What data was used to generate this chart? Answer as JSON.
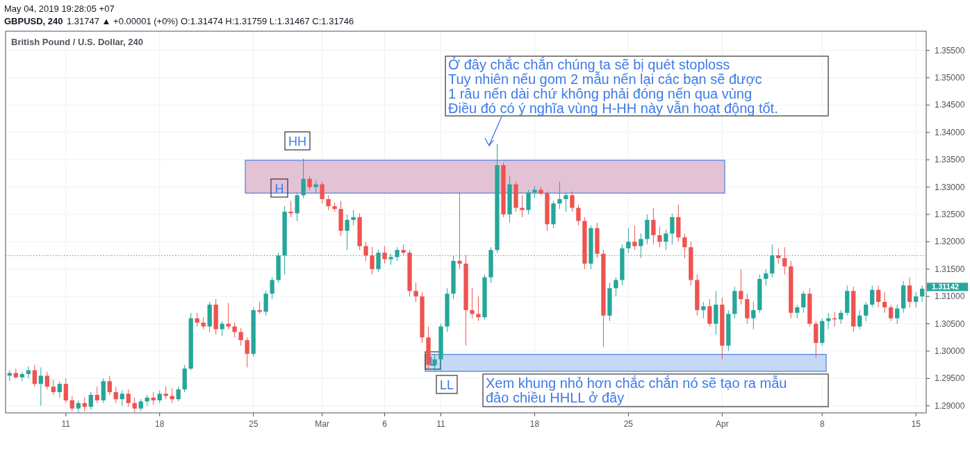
{
  "chart_data": {
    "type": "candlestick",
    "title": "GBPUSD, 240",
    "subtitle": "1.31747 ▲ +0.00001 (+0%) O:1.31474 H:1.31759 L:1.31467 C:1.31746",
    "annotations": [
      "May 04, 2019 19:28:05 +07",
      "British Pound / U.S. Dollar, 240",
      "Ở đây chắc chắn chúng ta sẽ bị quét stoploss\nTuy nhiên nếu gom 2 mẫu nến lại các bạn sẽ được\n1 râu nến dài chứ không phải đóng nến qua vùng\nĐiều đó có ý nghĩa vùng H-HH này vẫn hoạt động tốt.",
      "HH",
      "H",
      "L",
      "LL",
      "Xem khung nhỏ hơn chắc chắn nó sẽ tạo ra mẫu\nđảo chiều HHLL ở đây",
      "1.31142"
    ],
    "categories": [
      null,
      null,
      null,
      null,
      null,
      null,
      null,
      null,
      null,
      "11",
      null,
      null,
      null,
      null,
      null,
      null,
      null,
      null,
      null,
      null,
      null,
      null,
      null,
      null,
      "18",
      null,
      null,
      null,
      null,
      null,
      null,
      null,
      null,
      null,
      null,
      null,
      null,
      null,
      null,
      "25",
      null,
      null,
      null,
      null,
      null,
      null,
      null,
      null,
      null,
      null,
      "Mar",
      null,
      null,
      null,
      null,
      null,
      null,
      null,
      null,
      null,
      "6",
      null,
      null,
      null,
      null,
      null,
      null,
      null,
      null,
      "11",
      null,
      null,
      null,
      null,
      null,
      null,
      null,
      null,
      null,
      null,
      null,
      null,
      null,
      null,
      "18",
      null,
      null,
      null,
      null,
      null,
      null,
      null,
      null,
      null,
      null,
      null,
      null,
      null,
      null,
      "25",
      null,
      null,
      null,
      null,
      null,
      null,
      null,
      null,
      null,
      null,
      null,
      null,
      null,
      null,
      "Apr",
      null,
      null,
      null,
      null,
      null,
      null,
      null,
      null,
      null,
      null,
      null,
      null,
      null,
      null,
      null,
      "8",
      null,
      null,
      null,
      null,
      null,
      null,
      null,
      null,
      null,
      null,
      null,
      null,
      null,
      null,
      "15",
      null
    ],
    "ohlc": [
      [
        1.2955,
        1.2965,
        1.2945,
        1.296
      ],
      [
        1.296,
        1.2968,
        1.295,
        1.2952
      ],
      [
        1.2952,
        1.2962,
        1.2945,
        1.2958
      ],
      [
        1.2958,
        1.2972,
        1.295,
        1.2965
      ],
      [
        1.2965,
        1.2975,
        1.2935,
        1.294
      ],
      [
        1.294,
        1.297,
        1.29,
        1.2955
      ],
      [
        1.2955,
        1.2962,
        1.293,
        1.2935
      ],
      [
        1.2935,
        1.2948,
        1.292,
        1.2925
      ],
      [
        1.2925,
        1.2945,
        1.2915,
        1.294
      ],
      [
        1.294,
        1.295,
        1.2905,
        1.291
      ],
      [
        1.291,
        1.2918,
        1.289,
        1.2895
      ],
      [
        1.2895,
        1.291,
        1.2888,
        1.2905
      ],
      [
        1.2905,
        1.2915,
        1.289,
        1.2898
      ],
      [
        1.2898,
        1.2925,
        1.2893,
        1.292
      ],
      [
        1.292,
        1.2935,
        1.2905,
        1.291
      ],
      [
        1.291,
        1.295,
        1.2905,
        1.2945
      ],
      [
        1.2945,
        1.2955,
        1.292,
        1.2925
      ],
      [
        1.2925,
        1.2935,
        1.2905,
        1.2912
      ],
      [
        1.2912,
        1.2928,
        1.29,
        1.2922
      ],
      [
        1.2922,
        1.293,
        1.2898,
        1.2905
      ],
      [
        1.2905,
        1.2915,
        1.2888,
        1.2895
      ],
      [
        1.2895,
        1.2912,
        1.289,
        1.2908
      ],
      [
        1.2908,
        1.292,
        1.29,
        1.2915
      ],
      [
        1.2915,
        1.2925,
        1.2902,
        1.291
      ],
      [
        1.291,
        1.2928,
        1.2905,
        1.2922
      ],
      [
        1.2922,
        1.2935,
        1.2912,
        1.2918
      ],
      [
        1.2918,
        1.2932,
        1.2905,
        1.2912
      ],
      [
        1.2912,
        1.2935,
        1.2908,
        1.293
      ],
      [
        1.293,
        1.2975,
        1.2925,
        1.2968
      ],
      [
        1.2968,
        1.307,
        1.2965,
        1.306
      ],
      [
        1.306,
        1.307,
        1.3045,
        1.3052
      ],
      [
        1.3052,
        1.3062,
        1.304,
        1.3045
      ],
      [
        1.3045,
        1.309,
        1.3035,
        1.3085
      ],
      [
        1.3085,
        1.3095,
        1.303,
        1.304
      ],
      [
        1.304,
        1.3055,
        1.3028,
        1.305
      ],
      [
        1.305,
        1.3088,
        1.304,
        1.3045
      ],
      [
        1.3045,
        1.3052,
        1.3025,
        1.3035
      ],
      [
        1.3035,
        1.3042,
        1.301,
        1.302
      ],
      [
        1.302,
        1.3025,
        1.297,
        1.2995
      ],
      [
        1.2995,
        1.308,
        1.299,
        1.3075
      ],
      [
        1.3075,
        1.309,
        1.3068,
        1.3072
      ],
      [
        1.3072,
        1.311,
        1.3065,
        1.3105
      ],
      [
        1.3105,
        1.3135,
        1.3095,
        1.313
      ],
      [
        1.313,
        1.318,
        1.3125,
        1.3175
      ],
      [
        1.3175,
        1.3265,
        1.314,
        1.3255
      ],
      [
        1.3255,
        1.3275,
        1.3245,
        1.3252
      ],
      [
        1.3252,
        1.329,
        1.3238,
        1.3285
      ],
      [
        1.3285,
        1.3352,
        1.328,
        1.3315
      ],
      [
        1.3315,
        1.332,
        1.3295,
        1.33
      ],
      [
        1.33,
        1.3312,
        1.329,
        1.3305
      ],
      [
        1.3305,
        1.331,
        1.327,
        1.3278
      ],
      [
        1.3278,
        1.3285,
        1.3258,
        1.3265
      ],
      [
        1.3265,
        1.3272,
        1.3255,
        1.326
      ],
      [
        1.326,
        1.3275,
        1.321,
        1.322
      ],
      [
        1.322,
        1.325,
        1.3185,
        1.324
      ],
      [
        1.324,
        1.3258,
        1.323,
        1.3245
      ],
      [
        1.3245,
        1.3252,
        1.3185,
        1.3192
      ],
      [
        1.3192,
        1.32,
        1.3165,
        1.3175
      ],
      [
        1.3175,
        1.319,
        1.314,
        1.315
      ],
      [
        1.315,
        1.3185,
        1.3145,
        1.318
      ],
      [
        1.318,
        1.3192,
        1.316,
        1.3168
      ],
      [
        1.3168,
        1.3178,
        1.3158,
        1.3172
      ],
      [
        1.3172,
        1.319,
        1.3165,
        1.3185
      ],
      [
        1.3185,
        1.3195,
        1.3175,
        1.318
      ],
      [
        1.318,
        1.3185,
        1.31,
        1.311
      ],
      [
        1.311,
        1.3125,
        1.309,
        1.31
      ],
      [
        1.31,
        1.3108,
        1.3015,
        1.3025
      ],
      [
        1.3025,
        1.3045,
        1.2968,
        1.2975
      ],
      [
        1.2975,
        1.2995,
        1.2962,
        1.2985
      ],
      [
        1.2985,
        1.305,
        1.2965,
        1.3045
      ],
      [
        1.3045,
        1.3115,
        1.3035,
        1.3105
      ],
      [
        1.3105,
        1.3175,
        1.3095,
        1.3165
      ],
      [
        1.3165,
        1.329,
        1.315,
        1.316
      ],
      [
        1.316,
        1.3175,
        1.301,
        1.3075
      ],
      [
        1.3075,
        1.3115,
        1.306,
        1.3068
      ],
      [
        1.3068,
        1.31,
        1.3055,
        1.3062
      ],
      [
        1.3062,
        1.314,
        1.3058,
        1.3135
      ],
      [
        1.3135,
        1.319,
        1.3125,
        1.3185
      ],
      [
        1.3185,
        1.3379,
        1.318,
        1.334
      ],
      [
        1.334,
        1.3345,
        1.3245,
        1.325
      ],
      [
        1.325,
        1.332,
        1.3235,
        1.3305
      ],
      [
        1.3305,
        1.331,
        1.3255,
        1.3262
      ],
      [
        1.3262,
        1.3285,
        1.3245,
        1.3258
      ],
      [
        1.3258,
        1.3295,
        1.325,
        1.329
      ],
      [
        1.329,
        1.3302,
        1.328,
        1.3295
      ],
      [
        1.3295,
        1.33,
        1.3285,
        1.3288
      ],
      [
        1.3288,
        1.3292,
        1.322,
        1.3232
      ],
      [
        1.3232,
        1.3275,
        1.3225,
        1.327
      ],
      [
        1.327,
        1.331,
        1.326,
        1.3278
      ],
      [
        1.3278,
        1.329,
        1.3255,
        1.3285
      ],
      [
        1.3285,
        1.3292,
        1.3255,
        1.3262
      ],
      [
        1.3262,
        1.3268,
        1.323,
        1.3238
      ],
      [
        1.3238,
        1.3245,
        1.315,
        1.316
      ],
      [
        1.316,
        1.323,
        1.315,
        1.3225
      ],
      [
        1.3225,
        1.3235,
        1.317,
        1.3178
      ],
      [
        1.3178,
        1.3185,
        1.3008,
        1.3065
      ],
      [
        1.3065,
        1.3125,
        1.3055,
        1.3115
      ],
      [
        1.3115,
        1.3135,
        1.31,
        1.313
      ],
      [
        1.313,
        1.3195,
        1.312,
        1.3188
      ],
      [
        1.3188,
        1.3225,
        1.318,
        1.32
      ],
      [
        1.32,
        1.323,
        1.3185,
        1.3192
      ],
      [
        1.3192,
        1.3215,
        1.317,
        1.3205
      ],
      [
        1.3205,
        1.325,
        1.3195,
        1.324
      ],
      [
        1.324,
        1.3262,
        1.3195,
        1.3212
      ],
      [
        1.3212,
        1.3228,
        1.319,
        1.32
      ],
      [
        1.32,
        1.3222,
        1.3185,
        1.3215
      ],
      [
        1.3215,
        1.3252,
        1.3195,
        1.3245
      ],
      [
        1.3245,
        1.3268,
        1.32,
        1.3208
      ],
      [
        1.3208,
        1.3215,
        1.317,
        1.319
      ],
      [
        1.319,
        1.32,
        1.312,
        1.313
      ],
      [
        1.313,
        1.314,
        1.3065,
        1.3075
      ],
      [
        1.3075,
        1.309,
        1.306,
        1.3082
      ],
      [
        1.3082,
        1.3095,
        1.3045,
        1.305
      ],
      [
        1.305,
        1.311,
        1.303,
        1.3085
      ],
      [
        1.3085,
        1.3098,
        1.2985,
        1.301
      ],
      [
        1.301,
        1.3075,
        1.3,
        1.3068
      ],
      [
        1.3068,
        1.3118,
        1.306,
        1.311
      ],
      [
        1.311,
        1.315,
        1.3085,
        1.3095
      ],
      [
        1.3095,
        1.3105,
        1.305,
        1.306
      ],
      [
        1.306,
        1.309,
        1.304,
        1.3075
      ],
      [
        1.3075,
        1.314,
        1.307,
        1.3132
      ],
      [
        1.3132,
        1.315,
        1.312,
        1.3142
      ],
      [
        1.3142,
        1.3195,
        1.3135,
        1.3175
      ],
      [
        1.3175,
        1.3188,
        1.316,
        1.317
      ],
      [
        1.317,
        1.319,
        1.314,
        1.3155
      ],
      [
        1.3155,
        1.3165,
        1.306,
        1.307
      ],
      [
        1.307,
        1.3085,
        1.306,
        1.308
      ],
      [
        1.308,
        1.311,
        1.307,
        1.3105
      ],
      [
        1.3105,
        1.3115,
        1.3045,
        1.305
      ],
      [
        1.305,
        1.3055,
        1.2988,
        1.3015
      ],
      [
        1.3015,
        1.306,
        1.301,
        1.3055
      ],
      [
        1.3055,
        1.307,
        1.304,
        1.306
      ],
      [
        1.306,
        1.3072,
        1.3045,
        1.3058
      ],
      [
        1.3058,
        1.3075,
        1.305,
        1.307
      ],
      [
        1.307,
        1.312,
        1.3065,
        1.311
      ],
      [
        1.311,
        1.3118,
        1.3035,
        1.3045
      ],
      [
        1.3045,
        1.3075,
        1.304,
        1.3065
      ],
      [
        1.3065,
        1.309,
        1.3055,
        1.3085
      ],
      [
        1.3085,
        1.312,
        1.308,
        1.3112
      ],
      [
        1.3112,
        1.312,
        1.308,
        1.309
      ],
      [
        1.309,
        1.3108,
        1.307,
        1.308
      ],
      [
        1.308,
        1.3085,
        1.3055,
        1.306
      ],
      [
        1.306,
        1.3085,
        1.305,
        1.3078
      ],
      [
        1.3078,
        1.3128,
        1.307,
        1.312
      ],
      [
        1.312,
        1.3135,
        1.308,
        1.309
      ],
      [
        1.309,
        1.3108,
        1.308,
        1.31
      ],
      [
        1.31,
        1.312,
        1.309,
        1.31142
      ]
    ],
    "colors": [
      "#26a69a",
      "#ef5350",
      "#26a69a",
      "#26a69a",
      "#ef5350",
      "#26a69a",
      "#ef5350",
      "#ef5350",
      "#26a69a",
      "#ef5350",
      "#ef5350",
      "#26a69a",
      "#ef5350",
      "#26a69a",
      "#ef5350",
      "#26a69a",
      "#ef5350",
      "#ef5350",
      "#26a69a",
      "#ef5350",
      "#ef5350",
      "#26a69a",
      "#26a69a",
      "#ef5350",
      "#26a69a",
      "#ef5350",
      "#ef5350",
      "#26a69a",
      "#26a69a",
      "#26a69a",
      "#ef5350",
      "#ef5350",
      "#26a69a",
      "#ef5350",
      "#26a69a",
      "#ef5350",
      "#ef5350",
      "#ef5350",
      "#ef5350",
      "#26a69a",
      "#ef5350",
      "#26a69a",
      "#26a69a",
      "#26a69a",
      "#26a69a",
      "#ef5350",
      "#26a69a",
      "#26a69a",
      "#ef5350",
      "#26a69a",
      "#ef5350",
      "#ef5350",
      "#ef5350",
      "#ef5350",
      "#26a69a",
      "#26a69a",
      "#ef5350",
      "#ef5350",
      "#ef5350",
      "#26a69a",
      "#ef5350",
      "#26a69a",
      "#26a69a",
      "#ef5350",
      "#ef5350",
      "#ef5350",
      "#ef5350",
      "#ef5350",
      "#26a69a",
      "#26a69a",
      "#26a69a",
      "#26a69a",
      "#ef5350",
      "#ef5350",
      "#ef5350",
      "#ef5350",
      "#26a69a",
      "#26a69a",
      "#26a69a",
      "#ef5350",
      "#26a69a",
      "#ef5350",
      "#ef5350",
      "#26a69a",
      "#26a69a",
      "#ef5350",
      "#ef5350",
      "#26a69a",
      "#26a69a",
      "#26a69a",
      "#ef5350",
      "#ef5350",
      "#ef5350",
      "#26a69a",
      "#ef5350",
      "#ef5350",
      "#26a69a",
      "#26a69a",
      "#26a69a",
      "#26a69a",
      "#ef5350",
      "#26a69a",
      "#26a69a",
      "#ef5350",
      "#ef5350",
      "#26a69a",
      "#26a69a",
      "#ef5350",
      "#ef5350",
      "#ef5350",
      "#ef5350",
      "#26a69a",
      "#ef5350",
      "#26a69a",
      "#ef5350",
      "#26a69a",
      "#26a69a",
      "#ef5350",
      "#ef5350",
      "#26a69a",
      "#26a69a",
      "#26a69a",
      "#26a69a",
      "#ef5350",
      "#ef5350",
      "#ef5350",
      "#26a69a",
      "#26a69a",
      "#ef5350",
      "#ef5350",
      "#26a69a",
      "#26a69a",
      "#ef5350",
      "#26a69a",
      "#26a69a",
      "#ef5350",
      "#26a69a",
      "#26a69a",
      "#26a69a",
      "#ef5350",
      "#ef5350",
      "#ef5350",
      "#26a69a",
      "#26a69a",
      "#ef5350",
      "#26a69a",
      "#26a69a"
    ],
    "ylim": [
      1.2887,
      1.3585
    ],
    "yticks": [
      {
        "value": 1.29,
        "label": "1.29000"
      },
      {
        "value": 1.295,
        "label": "1.29500"
      },
      {
        "value": 1.3,
        "label": "1.30000"
      },
      {
        "value": 1.305,
        "label": "1.30500"
      },
      {
        "value": 1.31,
        "label": "1.31000"
      },
      {
        "value": 1.315,
        "label": "1.31500"
      },
      {
        "value": 1.32,
        "label": "1.32000"
      },
      {
        "value": 1.325,
        "label": "1.32500"
      },
      {
        "value": 1.33,
        "label": "1.33000"
      },
      {
        "value": 1.335,
        "label": "1.33500"
      },
      {
        "value": 1.34,
        "label": "1.34000"
      },
      {
        "value": 1.345,
        "label": "1.34500"
      },
      {
        "value": 1.35,
        "label": "1.35000"
      },
      {
        "value": 1.355,
        "label": "1.35500"
      }
    ],
    "grid": true,
    "ref_lines": [
      {
        "axis": "y",
        "value": 1.31747,
        "color": "#26a69a",
        "line_style": "dotted"
      }
    ],
    "bands": [
      {
        "axis": "y",
        "from": 1.3289,
        "to": 1.3349,
        "color": "#e3c2d5"
      },
      {
        "axis": "y",
        "from": 1.2963,
        "to": 1.2994,
        "color": "#c5d8f6"
      }
    ]
  }
}
